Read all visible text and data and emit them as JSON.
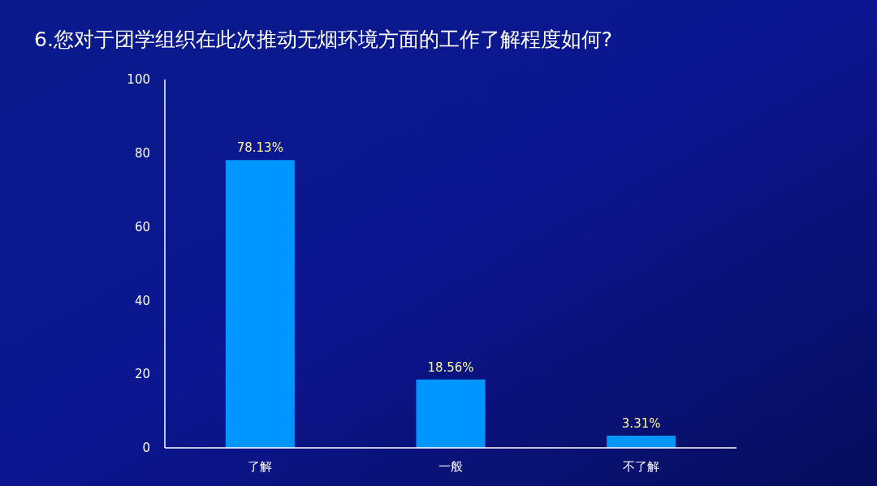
{
  "chart_data": {
    "type": "bar",
    "title": "6.您对于团学组织在此次推动无烟环境方面的工作了解程度如何?",
    "categories": [
      "了解",
      "一般",
      "不了解"
    ],
    "values": [
      78.13,
      18.56,
      3.31
    ],
    "value_labels": [
      "78.13%",
      "18.56%",
      "3.31%"
    ],
    "color": "#0096ff",
    "ylim": [
      0,
      100
    ],
    "yticks": [
      0,
      20,
      40,
      60,
      80,
      100
    ],
    "grid": false
  }
}
